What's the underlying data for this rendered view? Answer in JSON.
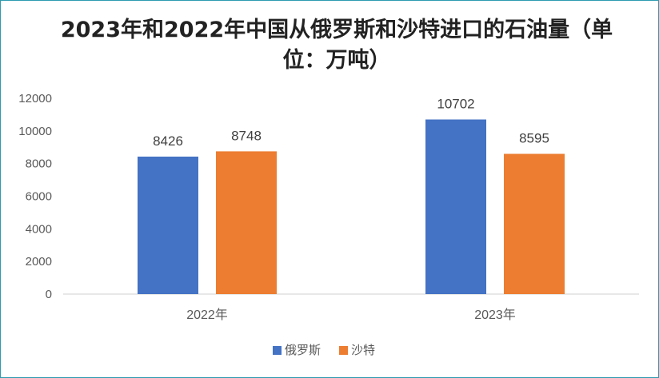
{
  "chart_data": {
    "type": "bar",
    "title": "2023年和2022年中国从俄罗斯和沙特进口的石油量（单位：万吨）",
    "categories": [
      "2022年",
      "2023年"
    ],
    "series": [
      {
        "name": "俄罗斯",
        "values": [
          8426,
          10702
        ],
        "color": "#4472C4"
      },
      {
        "name": "沙特",
        "values": [
          8748,
          8595
        ],
        "color": "#ED7D31"
      }
    ],
    "ylim": [
      0,
      12000
    ],
    "yticks": [
      0,
      2000,
      4000,
      6000,
      8000,
      10000,
      12000
    ],
    "xlabel": "",
    "ylabel": "",
    "grid": false,
    "legend_position": "bottom",
    "data_labels": true
  }
}
